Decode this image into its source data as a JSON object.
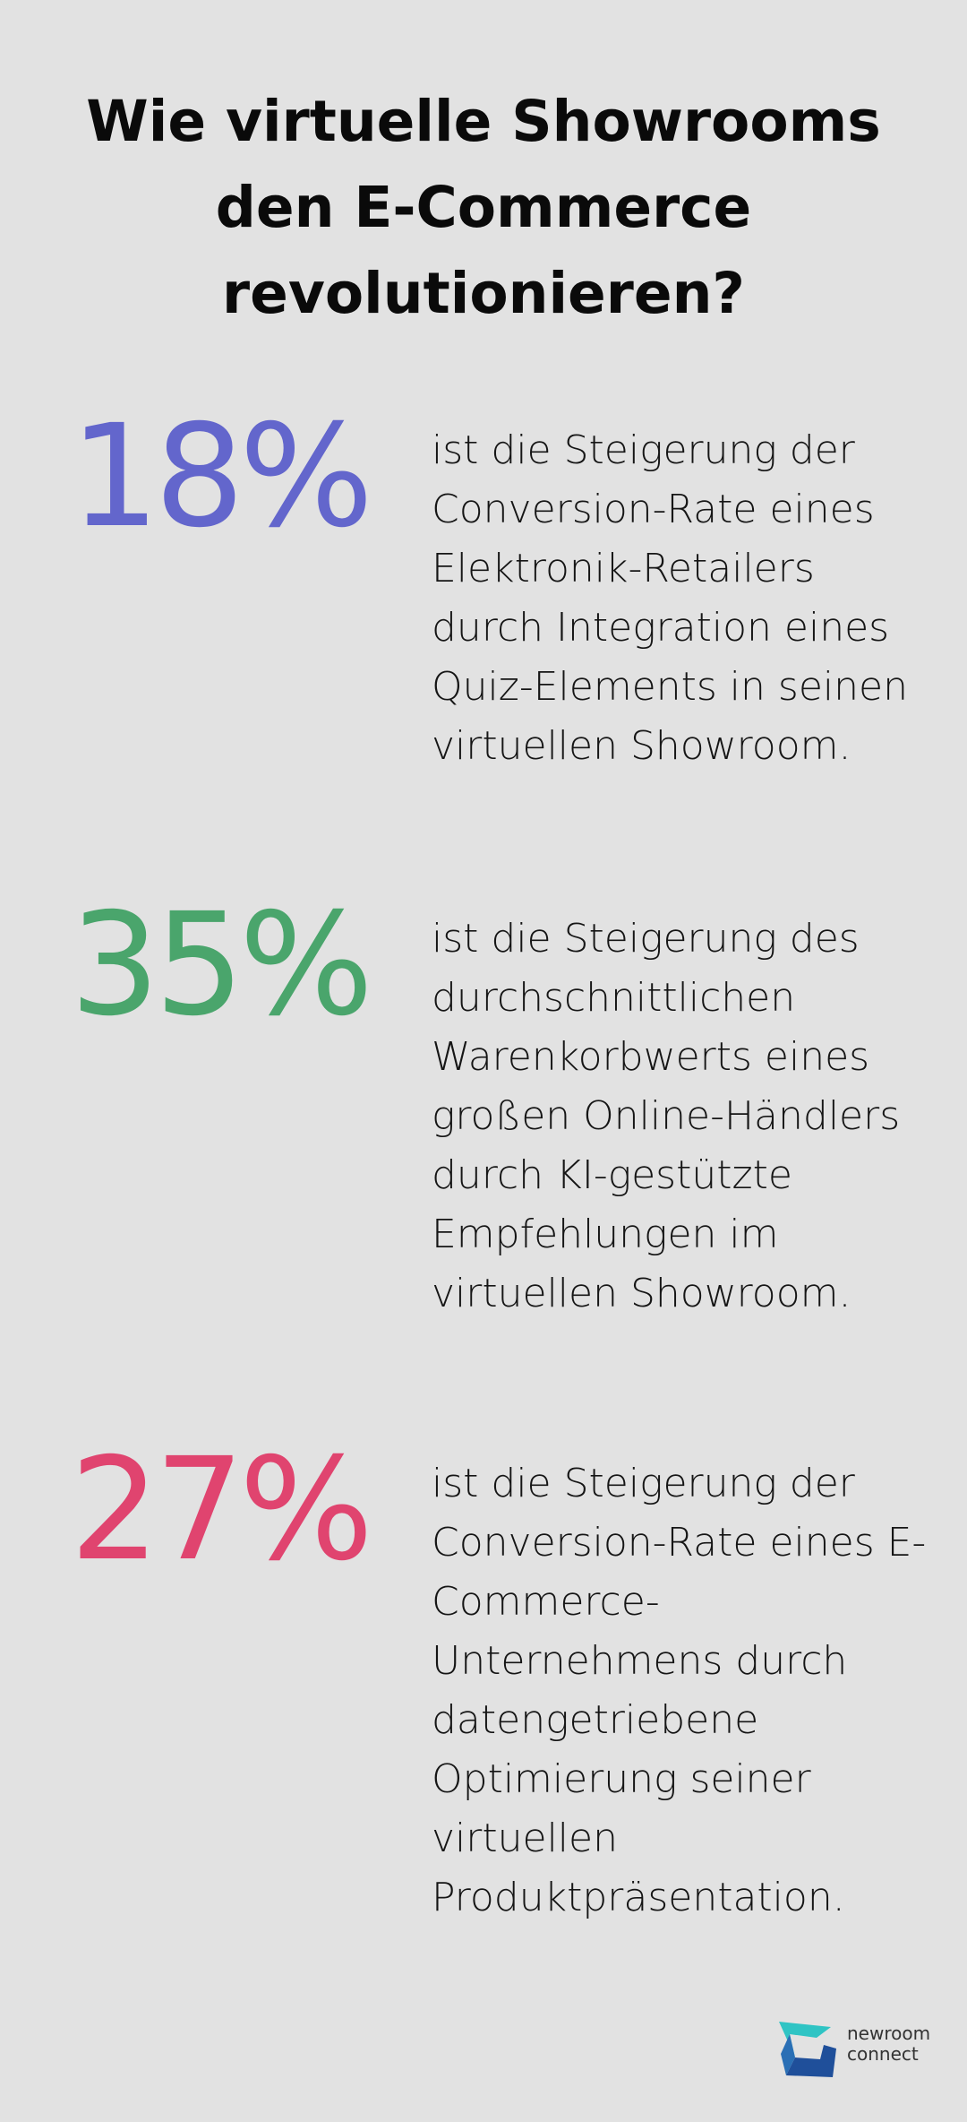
{
  "title": "Wie virtuelle Showrooms den E-Commerce revolutionieren?",
  "stats": [
    {
      "value": "18%",
      "color": "#6366cc",
      "description": "ist die Steigerung der Conversion-Rate eines Elektronik-Retailers durch Integration eines Quiz-Elements in seinen virtuellen Showroom."
    },
    {
      "value": "35%",
      "color": "#4aa56c",
      "description": "ist die Steigerung des durchschnittlichen Warenkorbwerts eines großen Online-Händlers durch KI-gestützte Empfehlungen im virtuellen Showroom."
    },
    {
      "value": "27%",
      "color": "#e0446f",
      "description": "ist die Steigerung der Conversion-Rate eines E-Commerce-Unternehmens durch datengetriebene Optimierung seiner virtuellen Produktpräsentation."
    }
  ],
  "logo": {
    "line1": "newroom",
    "line2": "connect",
    "icon": "newroom-connect-logo",
    "colors": [
      "#2fc4c4",
      "#2a6fb5",
      "#1f4f9a"
    ]
  }
}
